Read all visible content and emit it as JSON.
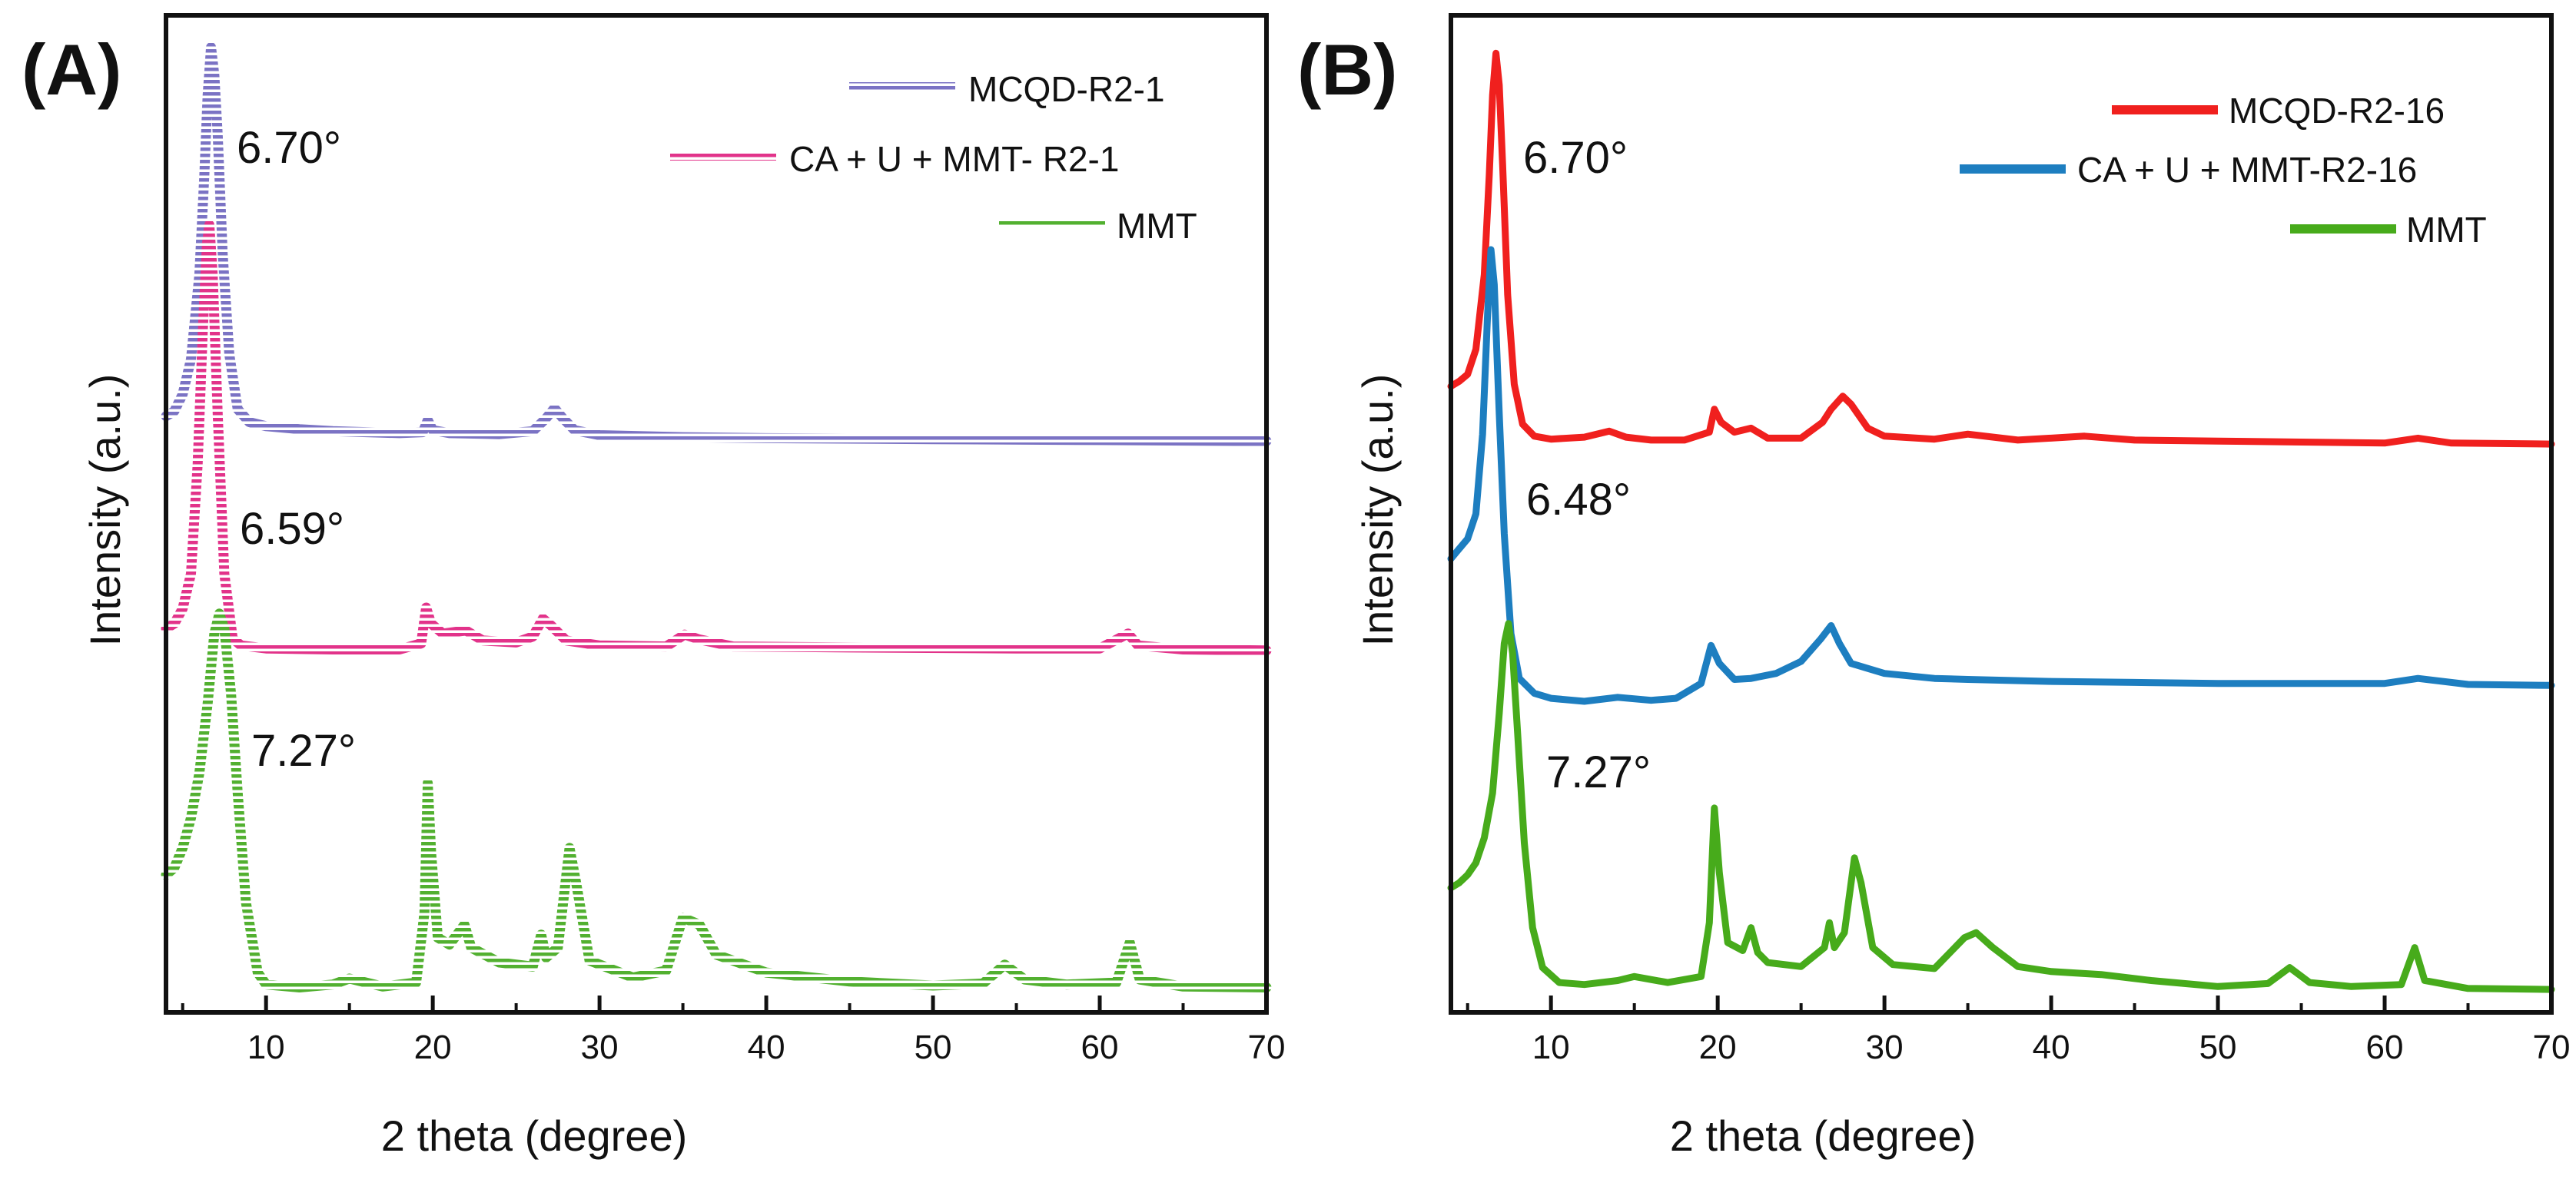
{
  "colors": {
    "a_mcqd": "#7b73c4",
    "a_ca": "#e2338a",
    "a_mmt": "#52b030",
    "b_mcqd": "#f0201e",
    "b_ca": "#1d7ec0",
    "b_mmt": "#47ab1b",
    "axis": "#111111"
  },
  "chart_data": [
    {
      "panel_label": "(A)",
      "type": "line",
      "xlabel": "2 theta (degree)",
      "ylabel": "Intensity (a.u.)",
      "xlim": [
        4,
        70
      ],
      "ylim": [
        0,
        100
      ],
      "xticks": [
        10,
        20,
        30,
        40,
        50,
        60,
        70
      ],
      "legend_position": "top-right",
      "line_style": "hatched",
      "series": [
        {
          "name": "MCQD-R2-1",
          "color": "a_mcqd",
          "points": [
            [
              4,
              59.8
            ],
            [
              4.5,
              60.3
            ],
            [
              5,
              62
            ],
            [
              5.5,
              65.5
            ],
            [
              6,
              74
            ],
            [
              6.3,
              84
            ],
            [
              6.5,
              92
            ],
            [
              6.7,
              96.8
            ],
            [
              6.9,
              94
            ],
            [
              7.1,
              88
            ],
            [
              7.4,
              76
            ],
            [
              7.8,
              66
            ],
            [
              8.3,
              60.5
            ],
            [
              9,
              59.2
            ],
            [
              10,
              58.8
            ],
            [
              12,
              58.5
            ],
            [
              14,
              58.3
            ],
            [
              16,
              58.2
            ],
            [
              18,
              58.1
            ],
            [
              19.4,
              58.2
            ],
            [
              19.7,
              59.4
            ],
            [
              20,
              58.4
            ],
            [
              21,
              58.1
            ],
            [
              24,
              58
            ],
            [
              26,
              58.3
            ],
            [
              26.8,
              59.6
            ],
            [
              27.3,
              60.6
            ],
            [
              27.8,
              59.6
            ],
            [
              28.5,
              58.4
            ],
            [
              30,
              57.9
            ],
            [
              35,
              57.7
            ],
            [
              40,
              57.6
            ],
            [
              50,
              57.5
            ],
            [
              60,
              57.4
            ],
            [
              70,
              57.3
            ]
          ]
        },
        {
          "name": "CA + U + MMT- R2-1",
          "color": "a_ca",
          "points": [
            [
              4,
              38.5
            ],
            [
              4.5,
              39
            ],
            [
              5,
              40.5
            ],
            [
              5.5,
              44
            ],
            [
              5.9,
              55
            ],
            [
              6.2,
              68
            ],
            [
              6.45,
              77
            ],
            [
              6.6,
              79
            ],
            [
              6.8,
              74
            ],
            [
              7.1,
              60
            ],
            [
              7.5,
              44
            ],
            [
              8,
              37.5
            ],
            [
              8.5,
              36.8
            ],
            [
              10,
              36.5
            ],
            [
              14,
              36.4
            ],
            [
              18,
              36.4
            ],
            [
              19.3,
              37
            ],
            [
              19.6,
              40.6
            ],
            [
              19.9,
              39
            ],
            [
              20.6,
              38
            ],
            [
              21.5,
              38.2
            ],
            [
              22,
              38.3
            ],
            [
              23,
              37.3
            ],
            [
              25,
              37.1
            ],
            [
              26,
              37.7
            ],
            [
              26.6,
              39.5
            ],
            [
              27.1,
              38.8
            ],
            [
              28,
              37.3
            ],
            [
              30,
              36.8
            ],
            [
              34,
              36.7
            ],
            [
              35.1,
              37.9
            ],
            [
              36,
              37.4
            ],
            [
              38,
              36.7
            ],
            [
              45,
              36.6
            ],
            [
              55,
              36.5
            ],
            [
              60,
              36.5
            ],
            [
              61.7,
              38
            ],
            [
              62.3,
              36.8
            ],
            [
              65,
              36.4
            ],
            [
              70,
              36.3
            ]
          ]
        },
        {
          "name": "MMT",
          "color": "a_mmt",
          "points": [
            [
              4,
              13.8
            ],
            [
              4.5,
              14.5
            ],
            [
              5,
              16.5
            ],
            [
              5.5,
              19.5
            ],
            [
              6,
              24
            ],
            [
              6.5,
              31
            ],
            [
              6.9,
              38
            ],
            [
              7.2,
              40
            ],
            [
              7.5,
              38.5
            ],
            [
              7.9,
              32
            ],
            [
              8.3,
              22
            ],
            [
              8.8,
              11
            ],
            [
              9.5,
              4
            ],
            [
              10,
              2.8
            ],
            [
              12,
              2.5
            ],
            [
              14,
              2.8
            ],
            [
              15,
              3.4
            ],
            [
              17,
              2.6
            ],
            [
              19,
              3
            ],
            [
              19.5,
              10
            ],
            [
              19.7,
              23
            ],
            [
              19.9,
              16
            ],
            [
              20.3,
              7.5
            ],
            [
              21,
              6.8
            ],
            [
              21.9,
              8.8
            ],
            [
              22.3,
              6.5
            ],
            [
              24,
              5
            ],
            [
              26,
              4.6
            ],
            [
              26.5,
              7.8
            ],
            [
              26.8,
              5.5
            ],
            [
              27.5,
              6.5
            ],
            [
              28.2,
              16.5
            ],
            [
              28.6,
              13
            ],
            [
              29.4,
              5.2
            ],
            [
              32,
              3.5
            ],
            [
              34,
              4.2
            ],
            [
              35,
              9.5
            ],
            [
              36,
              8.8
            ],
            [
              37,
              5.8
            ],
            [
              40,
              4
            ],
            [
              45,
              3.1
            ],
            [
              50,
              2.7
            ],
            [
              53,
              2.9
            ],
            [
              54.3,
              4.8
            ],
            [
              55.5,
              3.3
            ],
            [
              58,
              2.8
            ],
            [
              61,
              3
            ],
            [
              61.8,
              7
            ],
            [
              62.4,
              3.3
            ],
            [
              65,
              2.6
            ],
            [
              70,
              2.5
            ]
          ]
        }
      ],
      "annotations": [
        "6.70°",
        "6.59°",
        "7.27°"
      ]
    },
    {
      "panel_label": "(B)",
      "type": "line",
      "xlabel": "2 theta (degree)",
      "ylabel": "Intensity (a.u.)",
      "xlim": [
        4,
        70
      ],
      "ylim": [
        0,
        100
      ],
      "xticks": [
        10,
        20,
        30,
        40,
        50,
        60,
        70
      ],
      "legend_position": "top-right",
      "line_style": "solid",
      "series": [
        {
          "name": "MCQD-R2-16",
          "color": "b_mcqd",
          "points": [
            [
              4,
              62.8
            ],
            [
              4.5,
              63.3
            ],
            [
              5,
              64
            ],
            [
              5.5,
              66.5
            ],
            [
              6,
              74
            ],
            [
              6.3,
              84
            ],
            [
              6.5,
              92
            ],
            [
              6.7,
              96.2
            ],
            [
              6.9,
              93
            ],
            [
              7.1,
              85
            ],
            [
              7.4,
              72
            ],
            [
              7.8,
              63
            ],
            [
              8.3,
              59
            ],
            [
              9,
              57.8
            ],
            [
              10,
              57.5
            ],
            [
              12,
              57.7
            ],
            [
              13.5,
              58.3
            ],
            [
              14.5,
              57.7
            ],
            [
              16,
              57.4
            ],
            [
              18,
              57.4
            ],
            [
              19.5,
              58.2
            ],
            [
              19.8,
              60.5
            ],
            [
              20.2,
              59.2
            ],
            [
              21,
              58.2
            ],
            [
              22,
              58.6
            ],
            [
              23,
              57.6
            ],
            [
              25,
              57.6
            ],
            [
              26.3,
              59.2
            ],
            [
              26.8,
              60.5
            ],
            [
              27.5,
              61.8
            ],
            [
              28,
              61
            ],
            [
              29,
              58.6
            ],
            [
              30,
              57.8
            ],
            [
              33,
              57.5
            ],
            [
              35,
              58
            ],
            [
              38,
              57.4
            ],
            [
              42,
              57.8
            ],
            [
              45,
              57.4
            ],
            [
              50,
              57.3
            ],
            [
              55,
              57.2
            ],
            [
              60,
              57.1
            ],
            [
              62,
              57.6
            ],
            [
              64,
              57.1
            ],
            [
              70,
              57
            ]
          ]
        },
        {
          "name": "CA + U + MMT-R2-16",
          "color": "b_ca",
          "points": [
            [
              4,
              45.5
            ],
            [
              4.5,
              46.5
            ],
            [
              5,
              47.5
            ],
            [
              5.5,
              50
            ],
            [
              5.9,
              58
            ],
            [
              6.2,
              70
            ],
            [
              6.4,
              76.5
            ],
            [
              6.6,
              73
            ],
            [
              6.9,
              60
            ],
            [
              7.2,
              48
            ],
            [
              7.6,
              38
            ],
            [
              8.1,
              33.5
            ],
            [
              9,
              32
            ],
            [
              10,
              31.5
            ],
            [
              12,
              31.2
            ],
            [
              14,
              31.6
            ],
            [
              16,
              31.3
            ],
            [
              17.5,
              31.5
            ],
            [
              19,
              33
            ],
            [
              19.6,
              36.8
            ],
            [
              20.1,
              35
            ],
            [
              21,
              33.4
            ],
            [
              22,
              33.5
            ],
            [
              23.5,
              34
            ],
            [
              25,
              35.2
            ],
            [
              26.2,
              37.5
            ],
            [
              26.8,
              38.8
            ],
            [
              27.3,
              37
            ],
            [
              28,
              35
            ],
            [
              29,
              34.5
            ],
            [
              30,
              34
            ],
            [
              33,
              33.5
            ],
            [
              35,
              33.4
            ],
            [
              40,
              33.2
            ],
            [
              45,
              33.1
            ],
            [
              50,
              33
            ],
            [
              55,
              33
            ],
            [
              60,
              33
            ],
            [
              62,
              33.5
            ],
            [
              65,
              32.9
            ],
            [
              70,
              32.8
            ]
          ]
        },
        {
          "name": "MMT",
          "color": "b_mmt",
          "points": [
            [
              4,
              12.5
            ],
            [
              4.5,
              13
            ],
            [
              5,
              13.8
            ],
            [
              5.5,
              15
            ],
            [
              6,
              17.5
            ],
            [
              6.5,
              22
            ],
            [
              6.9,
              30
            ],
            [
              7.2,
              37
            ],
            [
              7.45,
              39
            ],
            [
              7.7,
              36
            ],
            [
              8,
              28
            ],
            [
              8.4,
              17
            ],
            [
              8.9,
              8.5
            ],
            [
              9.5,
              4.5
            ],
            [
              10.5,
              3
            ],
            [
              12,
              2.8
            ],
            [
              14,
              3.2
            ],
            [
              15,
              3.6
            ],
            [
              17,
              3
            ],
            [
              19,
              3.6
            ],
            [
              19.5,
              9
            ],
            [
              19.8,
              20.5
            ],
            [
              20.1,
              14
            ],
            [
              20.6,
              7
            ],
            [
              21.5,
              6.2
            ],
            [
              22,
              8.5
            ],
            [
              22.4,
              6
            ],
            [
              23,
              5
            ],
            [
              25,
              4.6
            ],
            [
              26.4,
              6.5
            ],
            [
              26.7,
              9
            ],
            [
              27,
              6.5
            ],
            [
              27.6,
              8
            ],
            [
              28.2,
              15.5
            ],
            [
              28.6,
              13
            ],
            [
              29.3,
              6.5
            ],
            [
              30.5,
              4.8
            ],
            [
              33,
              4.4
            ],
            [
              34.8,
              7.5
            ],
            [
              35.5,
              8
            ],
            [
              36.5,
              6.5
            ],
            [
              38,
              4.6
            ],
            [
              40,
              4.1
            ],
            [
              43,
              3.8
            ],
            [
              46,
              3.2
            ],
            [
              50,
              2.6
            ],
            [
              53,
              2.9
            ],
            [
              54.3,
              4.5
            ],
            [
              55.5,
              3
            ],
            [
              58,
              2.6
            ],
            [
              61,
              2.8
            ],
            [
              61.8,
              6.5
            ],
            [
              62.4,
              3.2
            ],
            [
              65,
              2.4
            ],
            [
              70,
              2.3
            ]
          ]
        }
      ],
      "annotations": [
        "6.70°",
        "6.48°",
        "7.27°"
      ]
    }
  ]
}
